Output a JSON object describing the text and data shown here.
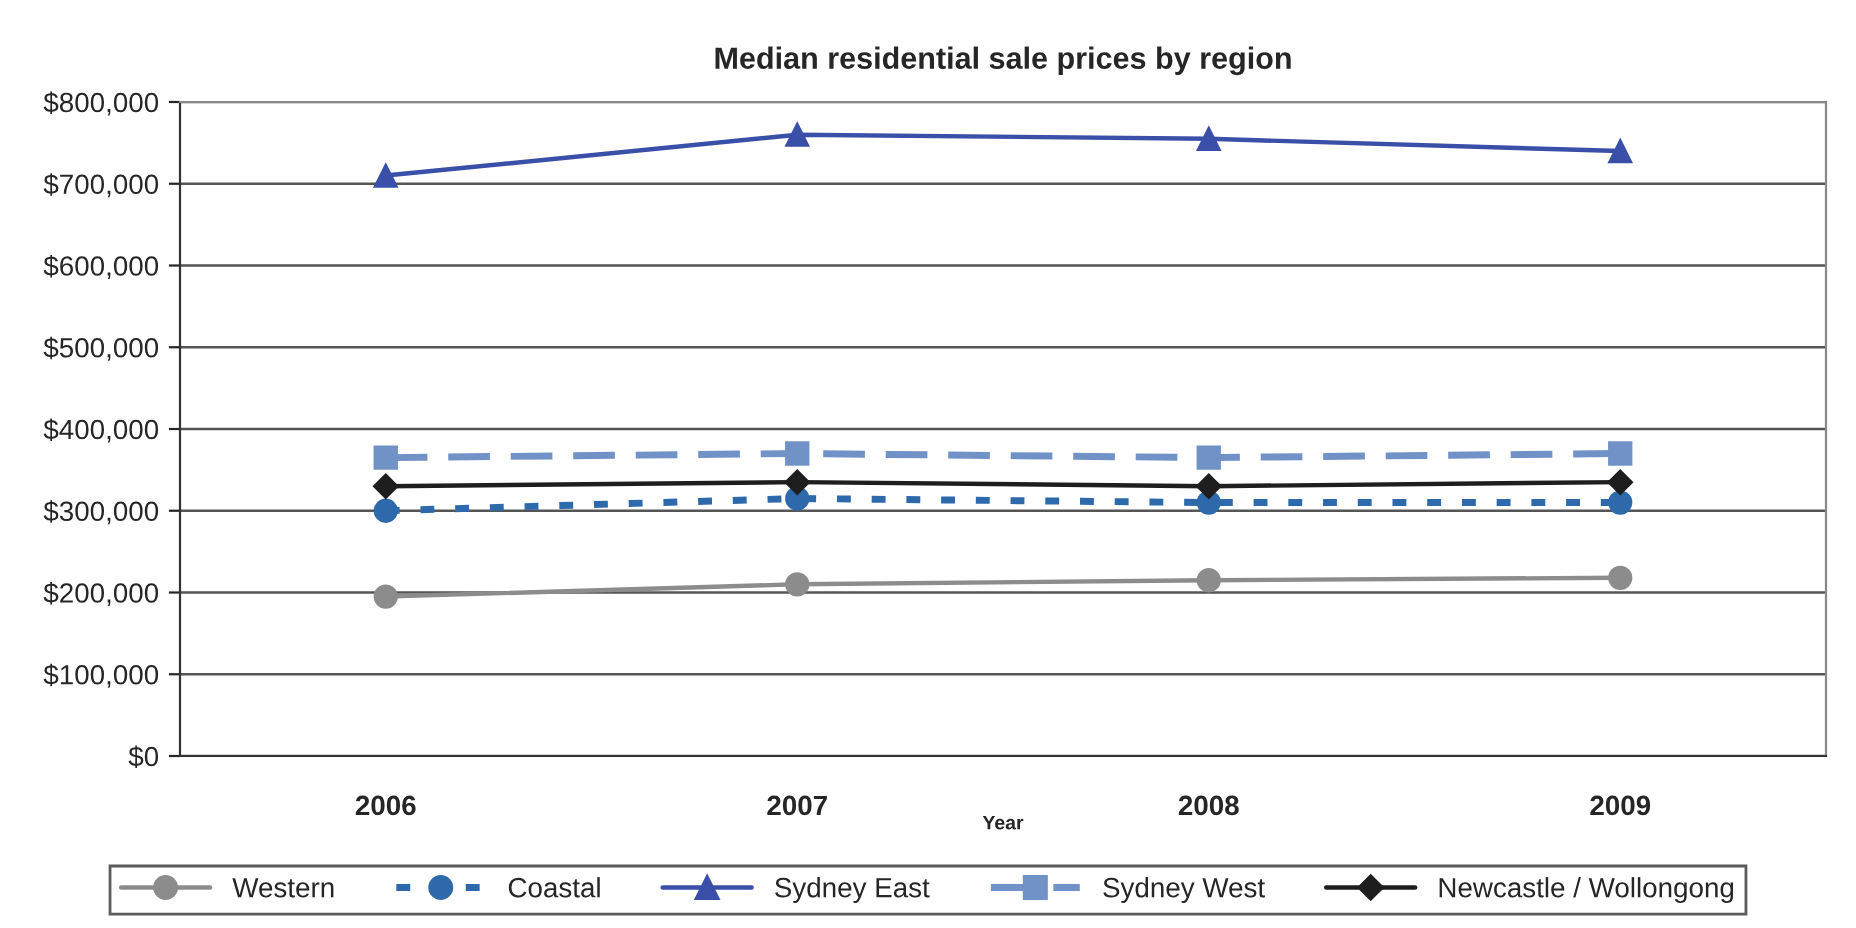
{
  "chart_data": {
    "type": "line",
    "title": "Median residential sale prices by region",
    "xlabel": "Year",
    "categories": [
      "2006",
      "2007",
      "2008",
      "2009"
    ],
    "series": [
      {
        "name": "Western",
        "color": "#8c8c8c",
        "marker": "circle",
        "line_style": "solid",
        "values": [
          195000,
          210000,
          215000,
          218000
        ]
      },
      {
        "name": "Coastal",
        "color": "#2e6aab",
        "marker": "circle",
        "line_style": "dotted",
        "values": [
          300000,
          315000,
          310000,
          310000
        ]
      },
      {
        "name": "Sydney East",
        "color": "#3a4fa8",
        "marker": "triangle",
        "line_style": "solid",
        "values": [
          710000,
          760000,
          755000,
          740000
        ]
      },
      {
        "name": "Sydney West",
        "color": "#7092c6",
        "marker": "square",
        "line_style": "dashed",
        "values": [
          365000,
          370000,
          365000,
          370000
        ]
      },
      {
        "name": "Newcastle / Wollongong",
        "color": "#1e1e1e",
        "marker": "diamond",
        "line_style": "solid",
        "values": [
          330000,
          335000,
          330000,
          335000
        ]
      }
    ],
    "ylim": [
      0,
      800000
    ],
    "yticks": [
      {
        "value": 0,
        "label": "$0"
      },
      {
        "value": 100000,
        "label": "$100,000"
      },
      {
        "value": 200000,
        "label": "$200,000"
      },
      {
        "value": 300000,
        "label": "$300,000"
      },
      {
        "value": 400000,
        "label": "$400,000"
      },
      {
        "value": 500000,
        "label": "$500,000"
      },
      {
        "value": 600000,
        "label": "$600,000"
      },
      {
        "value": 700000,
        "label": "$700,000"
      },
      {
        "value": 800000,
        "label": "$800,000"
      }
    ],
    "grid": "y",
    "legend": "bottom"
  }
}
